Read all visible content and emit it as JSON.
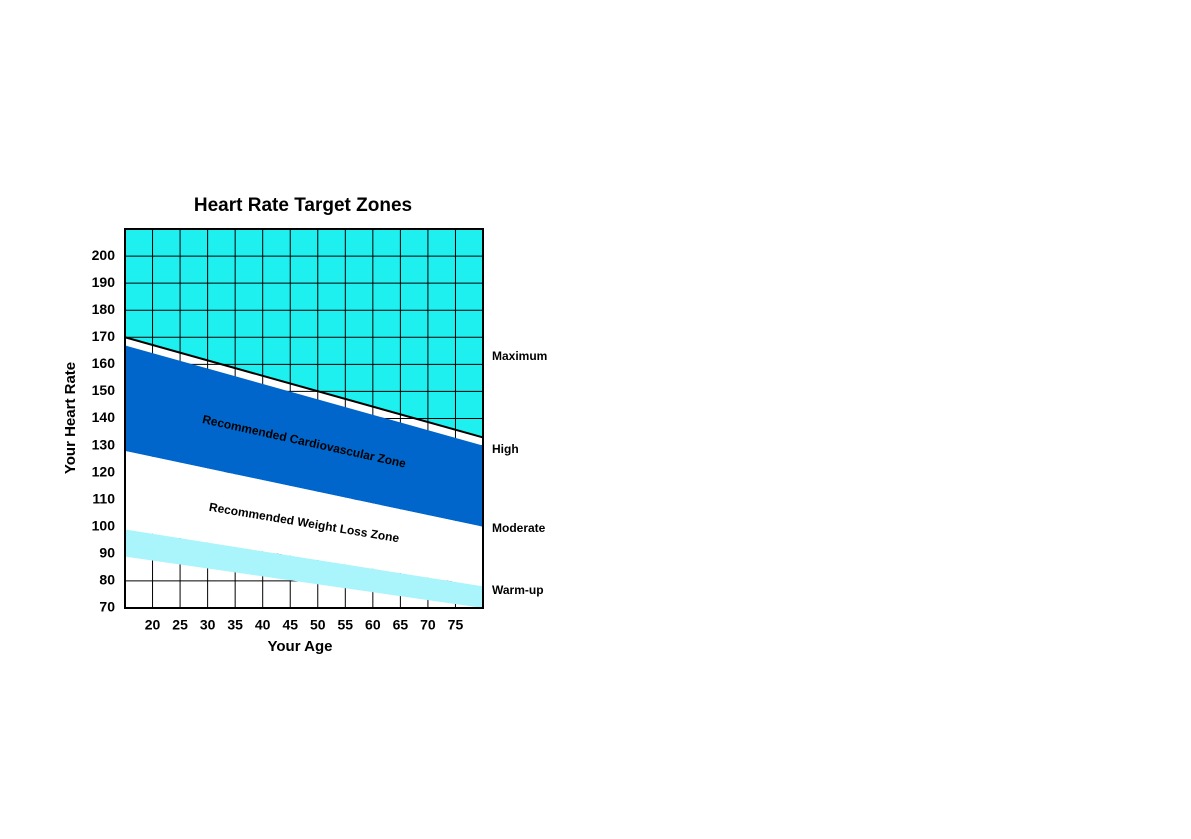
{
  "chart_data": {
    "type": "zones",
    "title": "Heart Rate Target Zones",
    "x_label": "Your Age",
    "y_label": "Your Heart Rate",
    "xlim": [
      15,
      80
    ],
    "ylim": [
      70,
      210
    ],
    "xticks": [
      20,
      25,
      30,
      35,
      40,
      45,
      50,
      55,
      60,
      65,
      70,
      75
    ],
    "yticks": [
      70,
      80,
      90,
      100,
      110,
      120,
      130,
      140,
      150,
      160,
      170,
      180,
      190,
      200
    ],
    "grid": true,
    "x": [
      15,
      80
    ],
    "top_color": "#1ef0f0",
    "maximum_line": {
      "values": [
        170,
        133
      ],
      "color": "#000000"
    },
    "bands": [
      {
        "name": "Recommended Cardiovascular Zone",
        "color": "#0066cc",
        "text_color": "#ffffff",
        "upper": [
          167,
          130
        ],
        "lower": [
          128,
          100
        ]
      },
      {
        "name": "Recommended Weight Loss Zone",
        "color": "#ffffff",
        "text_color": "#000000",
        "upper": [
          128,
          100
        ],
        "lower": [
          99,
          78
        ]
      },
      {
        "color": "#aaf4fc",
        "upper": [
          99,
          78
        ],
        "lower": [
          89,
          70
        ]
      }
    ],
    "zone_labels": [
      "Maximum",
      "High",
      "Moderate",
      "Warm-up"
    ]
  }
}
